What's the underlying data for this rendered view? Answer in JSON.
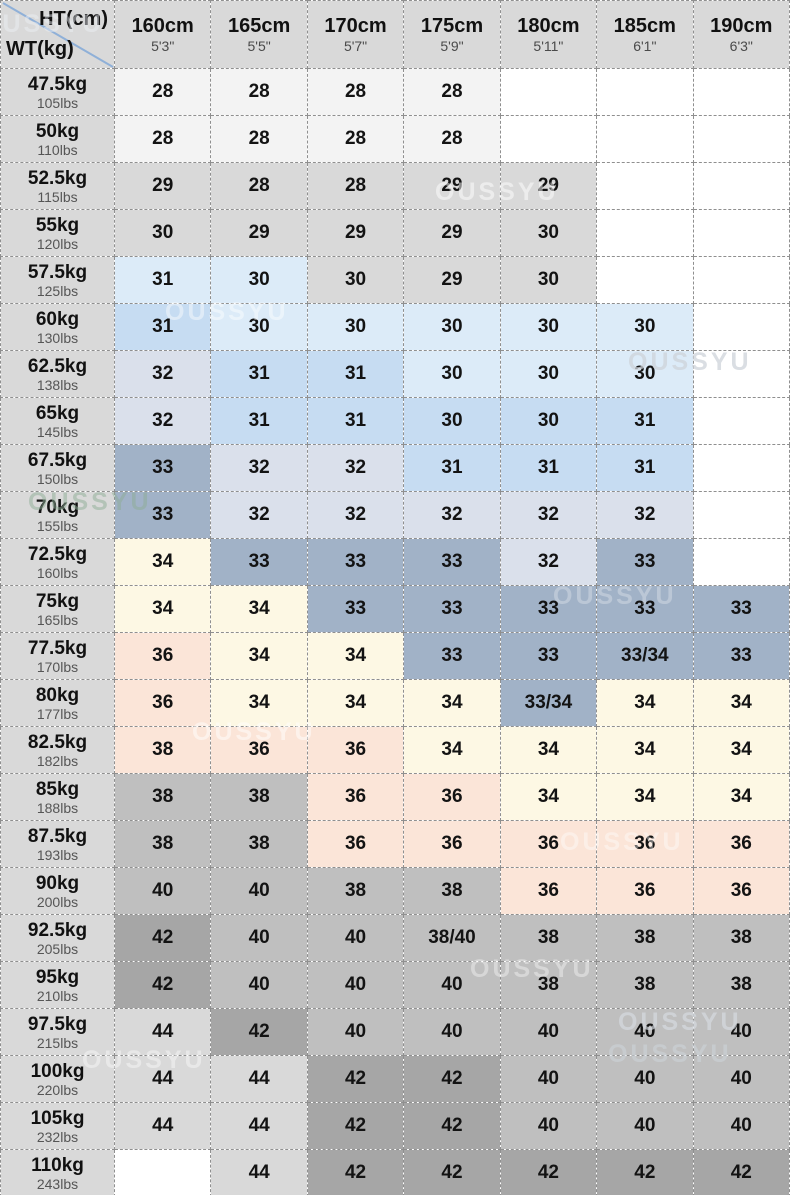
{
  "chart_data": {
    "type": "table",
    "description": "Height vs weight pants size chart",
    "watermark": "OUSSYU",
    "corner": {
      "top": "HT(cm)",
      "bottom": "WT(kg)"
    },
    "diagonal_color": "#8fb0d8",
    "columns": [
      {
        "cm": "160cm",
        "ft": "5'3\""
      },
      {
        "cm": "165cm",
        "ft": "5'5\""
      },
      {
        "cm": "170cm",
        "ft": "5'7\""
      },
      {
        "cm": "175cm",
        "ft": "5'9\""
      },
      {
        "cm": "180cm",
        "ft": "5'11\""
      },
      {
        "cm": "185cm",
        "ft": "6'1\""
      },
      {
        "cm": "190cm",
        "ft": "6'3\""
      }
    ],
    "palette": {
      "w": "#ffffff",
      "nw": "#f3f3f3",
      "g1": "#d9d9d9",
      "g2": "#bfbfbf",
      "g3": "#a6a6a6",
      "lb": "#dcebf8",
      "mb": "#c6dcf2",
      "ll": "#dae0eb",
      "sl": "#a1b2c7",
      "cr": "#fdf8e4",
      "pk": "#fbe5d8"
    },
    "rows": [
      {
        "kg": "47.5kg",
        "lbs": "105lbs",
        "cells": [
          {
            "v": "28",
            "c": "nw"
          },
          {
            "v": "28",
            "c": "nw"
          },
          {
            "v": "28",
            "c": "nw"
          },
          {
            "v": "28",
            "c": "nw"
          },
          {
            "v": "",
            "c": "w"
          },
          {
            "v": "",
            "c": "w"
          },
          {
            "v": "",
            "c": "w"
          }
        ]
      },
      {
        "kg": "50kg",
        "lbs": "110lbs",
        "cells": [
          {
            "v": "28",
            "c": "nw"
          },
          {
            "v": "28",
            "c": "nw"
          },
          {
            "v": "28",
            "c": "nw"
          },
          {
            "v": "28",
            "c": "nw"
          },
          {
            "v": "",
            "c": "w"
          },
          {
            "v": "",
            "c": "w"
          },
          {
            "v": "",
            "c": "w"
          }
        ]
      },
      {
        "kg": "52.5kg",
        "lbs": "115lbs",
        "cells": [
          {
            "v": "29",
            "c": "g1"
          },
          {
            "v": "28",
            "c": "g1"
          },
          {
            "v": "28",
            "c": "g1"
          },
          {
            "v": "29",
            "c": "g1"
          },
          {
            "v": "29",
            "c": "g1"
          },
          {
            "v": "",
            "c": "w"
          },
          {
            "v": "",
            "c": "w"
          }
        ]
      },
      {
        "kg": "55kg",
        "lbs": "120lbs",
        "cells": [
          {
            "v": "30",
            "c": "g1"
          },
          {
            "v": "29",
            "c": "g1"
          },
          {
            "v": "29",
            "c": "g1"
          },
          {
            "v": "29",
            "c": "g1"
          },
          {
            "v": "30",
            "c": "g1"
          },
          {
            "v": "",
            "c": "w"
          },
          {
            "v": "",
            "c": "w"
          }
        ]
      },
      {
        "kg": "57.5kg",
        "lbs": "125lbs",
        "cells": [
          {
            "v": "31",
            "c": "lb"
          },
          {
            "v": "30",
            "c": "lb"
          },
          {
            "v": "30",
            "c": "g1"
          },
          {
            "v": "29",
            "c": "g1"
          },
          {
            "v": "30",
            "c": "g1"
          },
          {
            "v": "",
            "c": "w"
          },
          {
            "v": "",
            "c": "w"
          }
        ]
      },
      {
        "kg": "60kg",
        "lbs": "130lbs",
        "cells": [
          {
            "v": "31",
            "c": "mb"
          },
          {
            "v": "30",
            "c": "lb"
          },
          {
            "v": "30",
            "c": "lb"
          },
          {
            "v": "30",
            "c": "lb"
          },
          {
            "v": "30",
            "c": "lb"
          },
          {
            "v": "30",
            "c": "lb"
          },
          {
            "v": "",
            "c": "w"
          }
        ]
      },
      {
        "kg": "62.5kg",
        "lbs": "138lbs",
        "cells": [
          {
            "v": "32",
            "c": "ll"
          },
          {
            "v": "31",
            "c": "mb"
          },
          {
            "v": "31",
            "c": "mb"
          },
          {
            "v": "30",
            "c": "lb"
          },
          {
            "v": "30",
            "c": "lb"
          },
          {
            "v": "30",
            "c": "lb"
          },
          {
            "v": "",
            "c": "w"
          }
        ]
      },
      {
        "kg": "65kg",
        "lbs": "145lbs",
        "cells": [
          {
            "v": "32",
            "c": "ll"
          },
          {
            "v": "31",
            "c": "mb"
          },
          {
            "v": "31",
            "c": "mb"
          },
          {
            "v": "30",
            "c": "mb"
          },
          {
            "v": "30",
            "c": "mb"
          },
          {
            "v": "31",
            "c": "mb"
          },
          {
            "v": "",
            "c": "w"
          }
        ]
      },
      {
        "kg": "67.5kg",
        "lbs": "150lbs",
        "cells": [
          {
            "v": "33",
            "c": "sl"
          },
          {
            "v": "32",
            "c": "ll"
          },
          {
            "v": "32",
            "c": "ll"
          },
          {
            "v": "31",
            "c": "mb"
          },
          {
            "v": "31",
            "c": "mb"
          },
          {
            "v": "31",
            "c": "mb"
          },
          {
            "v": "",
            "c": "w"
          }
        ]
      },
      {
        "kg": "70kg",
        "lbs": "155lbs",
        "cells": [
          {
            "v": "33",
            "c": "sl"
          },
          {
            "v": "32",
            "c": "ll"
          },
          {
            "v": "32",
            "c": "ll"
          },
          {
            "v": "32",
            "c": "ll"
          },
          {
            "v": "32",
            "c": "ll"
          },
          {
            "v": "32",
            "c": "ll"
          },
          {
            "v": "",
            "c": "w"
          }
        ]
      },
      {
        "kg": "72.5kg",
        "lbs": "160lbs",
        "cells": [
          {
            "v": "34",
            "c": "cr"
          },
          {
            "v": "33",
            "c": "sl"
          },
          {
            "v": "33",
            "c": "sl"
          },
          {
            "v": "33",
            "c": "sl"
          },
          {
            "v": "32",
            "c": "ll"
          },
          {
            "v": "33",
            "c": "sl"
          },
          {
            "v": "",
            "c": "w"
          }
        ]
      },
      {
        "kg": "75kg",
        "lbs": "165lbs",
        "cells": [
          {
            "v": "34",
            "c": "cr"
          },
          {
            "v": "34",
            "c": "cr"
          },
          {
            "v": "33",
            "c": "sl"
          },
          {
            "v": "33",
            "c": "sl"
          },
          {
            "v": "33",
            "c": "sl"
          },
          {
            "v": "33",
            "c": "sl"
          },
          {
            "v": "33",
            "c": "sl"
          }
        ]
      },
      {
        "kg": "77.5kg",
        "lbs": "170lbs",
        "cells": [
          {
            "v": "36",
            "c": "pk"
          },
          {
            "v": "34",
            "c": "cr"
          },
          {
            "v": "34",
            "c": "cr"
          },
          {
            "v": "33",
            "c": "sl"
          },
          {
            "v": "33",
            "c": "sl"
          },
          {
            "v": "33/34",
            "c": "sl"
          },
          {
            "v": "33",
            "c": "sl"
          }
        ]
      },
      {
        "kg": "80kg",
        "lbs": "177lbs",
        "cells": [
          {
            "v": "36",
            "c": "pk"
          },
          {
            "v": "34",
            "c": "cr"
          },
          {
            "v": "34",
            "c": "cr"
          },
          {
            "v": "34",
            "c": "cr"
          },
          {
            "v": "33/34",
            "c": "sl"
          },
          {
            "v": "34",
            "c": "cr"
          },
          {
            "v": "34",
            "c": "cr"
          }
        ]
      },
      {
        "kg": "82.5kg",
        "lbs": "182lbs",
        "cells": [
          {
            "v": "38",
            "c": "pk"
          },
          {
            "v": "36",
            "c": "pk"
          },
          {
            "v": "36",
            "c": "pk"
          },
          {
            "v": "34",
            "c": "cr"
          },
          {
            "v": "34",
            "c": "cr"
          },
          {
            "v": "34",
            "c": "cr"
          },
          {
            "v": "34",
            "c": "cr"
          }
        ]
      },
      {
        "kg": "85kg",
        "lbs": "188lbs",
        "cells": [
          {
            "v": "38",
            "c": "g2"
          },
          {
            "v": "38",
            "c": "g2"
          },
          {
            "v": "36",
            "c": "pk"
          },
          {
            "v": "36",
            "c": "pk"
          },
          {
            "v": "34",
            "c": "cr"
          },
          {
            "v": "34",
            "c": "cr"
          },
          {
            "v": "34",
            "c": "cr"
          }
        ]
      },
      {
        "kg": "87.5kg",
        "lbs": "193lbs",
        "cells": [
          {
            "v": "38",
            "c": "g2"
          },
          {
            "v": "38",
            "c": "g2"
          },
          {
            "v": "36",
            "c": "pk"
          },
          {
            "v": "36",
            "c": "pk"
          },
          {
            "v": "36",
            "c": "pk"
          },
          {
            "v": "36",
            "c": "pk"
          },
          {
            "v": "36",
            "c": "pk"
          }
        ]
      },
      {
        "kg": "90kg",
        "lbs": "200lbs",
        "cells": [
          {
            "v": "40",
            "c": "g2"
          },
          {
            "v": "40",
            "c": "g2"
          },
          {
            "v": "38",
            "c": "g2"
          },
          {
            "v": "38",
            "c": "g2"
          },
          {
            "v": "36",
            "c": "pk"
          },
          {
            "v": "36",
            "c": "pk"
          },
          {
            "v": "36",
            "c": "pk"
          }
        ]
      },
      {
        "kg": "92.5kg",
        "lbs": "205lbs",
        "cells": [
          {
            "v": "42",
            "c": "g3"
          },
          {
            "v": "40",
            "c": "g2"
          },
          {
            "v": "40",
            "c": "g2"
          },
          {
            "v": "38/40",
            "c": "g2"
          },
          {
            "v": "38",
            "c": "g2"
          },
          {
            "v": "38",
            "c": "g2"
          },
          {
            "v": "38",
            "c": "g2"
          }
        ]
      },
      {
        "kg": "95kg",
        "lbs": "210lbs",
        "cells": [
          {
            "v": "42",
            "c": "g3"
          },
          {
            "v": "40",
            "c": "g2"
          },
          {
            "v": "40",
            "c": "g2"
          },
          {
            "v": "40",
            "c": "g2"
          },
          {
            "v": "38",
            "c": "g2"
          },
          {
            "v": "38",
            "c": "g2"
          },
          {
            "v": "38",
            "c": "g2"
          }
        ]
      },
      {
        "kg": "97.5kg",
        "lbs": "215lbs",
        "cells": [
          {
            "v": "44",
            "c": "g1"
          },
          {
            "v": "42",
            "c": "g3"
          },
          {
            "v": "40",
            "c": "g2"
          },
          {
            "v": "40",
            "c": "g2"
          },
          {
            "v": "40",
            "c": "g2"
          },
          {
            "v": "40",
            "c": "g2"
          },
          {
            "v": "40",
            "c": "g2"
          }
        ]
      },
      {
        "kg": "100kg",
        "lbs": "220lbs",
        "cells": [
          {
            "v": "44",
            "c": "g1"
          },
          {
            "v": "44",
            "c": "g1"
          },
          {
            "v": "42",
            "c": "g3"
          },
          {
            "v": "42",
            "c": "g3"
          },
          {
            "v": "40",
            "c": "g2"
          },
          {
            "v": "40",
            "c": "g2"
          },
          {
            "v": "40",
            "c": "g2"
          }
        ]
      },
      {
        "kg": "105kg",
        "lbs": "232lbs",
        "cells": [
          {
            "v": "44",
            "c": "g1"
          },
          {
            "v": "44",
            "c": "g1"
          },
          {
            "v": "42",
            "c": "g3"
          },
          {
            "v": "42",
            "c": "g3"
          },
          {
            "v": "40",
            "c": "g2"
          },
          {
            "v": "40",
            "c": "g2"
          },
          {
            "v": "40",
            "c": "g2"
          }
        ]
      },
      {
        "kg": "110kg",
        "lbs": "243lbs",
        "cells": [
          {
            "v": "",
            "c": "w"
          },
          {
            "v": "44",
            "c": "g1"
          },
          {
            "v": "42",
            "c": "g3"
          },
          {
            "v": "42",
            "c": "g3"
          },
          {
            "v": "42",
            "c": "g3"
          },
          {
            "v": "42",
            "c": "g3"
          },
          {
            "v": "42",
            "c": "g3"
          }
        ]
      }
    ]
  }
}
